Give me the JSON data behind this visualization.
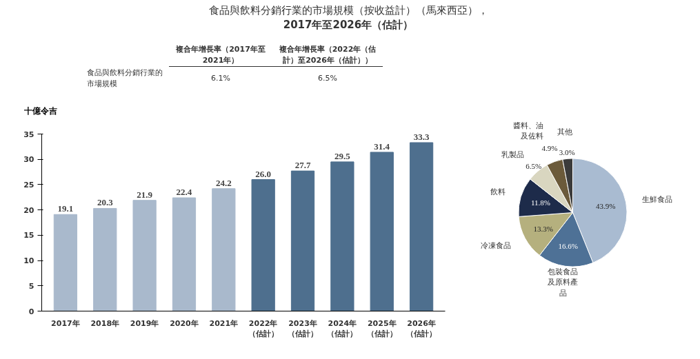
{
  "chart_data": [
    {
      "type": "bar",
      "title": "食品與飲料分銷行業的市場規模（按收益計）（馬來西亞），",
      "subtitle": "2017年至2026年（估計）",
      "ylabel": "十億令吉",
      "categories": [
        "2017年",
        "2018年",
        "2019年",
        "2020年",
        "2021年",
        "2022年（估計）",
        "2023年（估計）",
        "2024年（估計）",
        "2025年（估計）",
        "2026年（估計）"
      ],
      "values": [
        19.1,
        20.3,
        21.9,
        22.4,
        24.2,
        26.0,
        27.7,
        29.5,
        31.4,
        33.3
      ],
      "value_labels": [
        "19.1",
        "20.3",
        "21.9",
        "22.4",
        "24.2",
        "26.0",
        "27.7",
        "29.5",
        "31.4",
        "33.3"
      ],
      "colors": [
        "#a9b9cc",
        "#a9b9cc",
        "#a9b9cc",
        "#a9b9cc",
        "#a9b9cc",
        "#4e6f8e",
        "#4e6f8e",
        "#4e6f8e",
        "#4e6f8e",
        "#4e6f8e"
      ],
      "ylim": [
        0,
        35
      ],
      "yticks": [
        0,
        5,
        10,
        15,
        20,
        25,
        30,
        35
      ],
      "grid": false,
      "annotations": [
        "食品與飲料分銷行業的市場規模",
        "複合年增長率（2017年至2021年）",
        "複合年增長率（2022年（估計）至2026年（估計））",
        "6.1%",
        "6.5%"
      ]
    },
    {
      "type": "pie",
      "categories": [
        "生鮮食品",
        "包裝食品及原料產品",
        "冷凍食品",
        "飲料",
        "乳製品",
        "醬料、油及佐料",
        "其他"
      ],
      "values": [
        43.9,
        16.6,
        13.3,
        11.8,
        6.5,
        4.9,
        3.0
      ],
      "value_labels": [
        "43.9%",
        "16.6%",
        "13.3%",
        "11.8%",
        "6.5%",
        "4.9%",
        "3.0%"
      ],
      "colors": [
        "#a9bbd1",
        "#4e7196",
        "#b5b07e",
        "#1d2b4a",
        "#d9d6c0",
        "#6b5a3a",
        "#3b3b3b"
      ]
    }
  ]
}
